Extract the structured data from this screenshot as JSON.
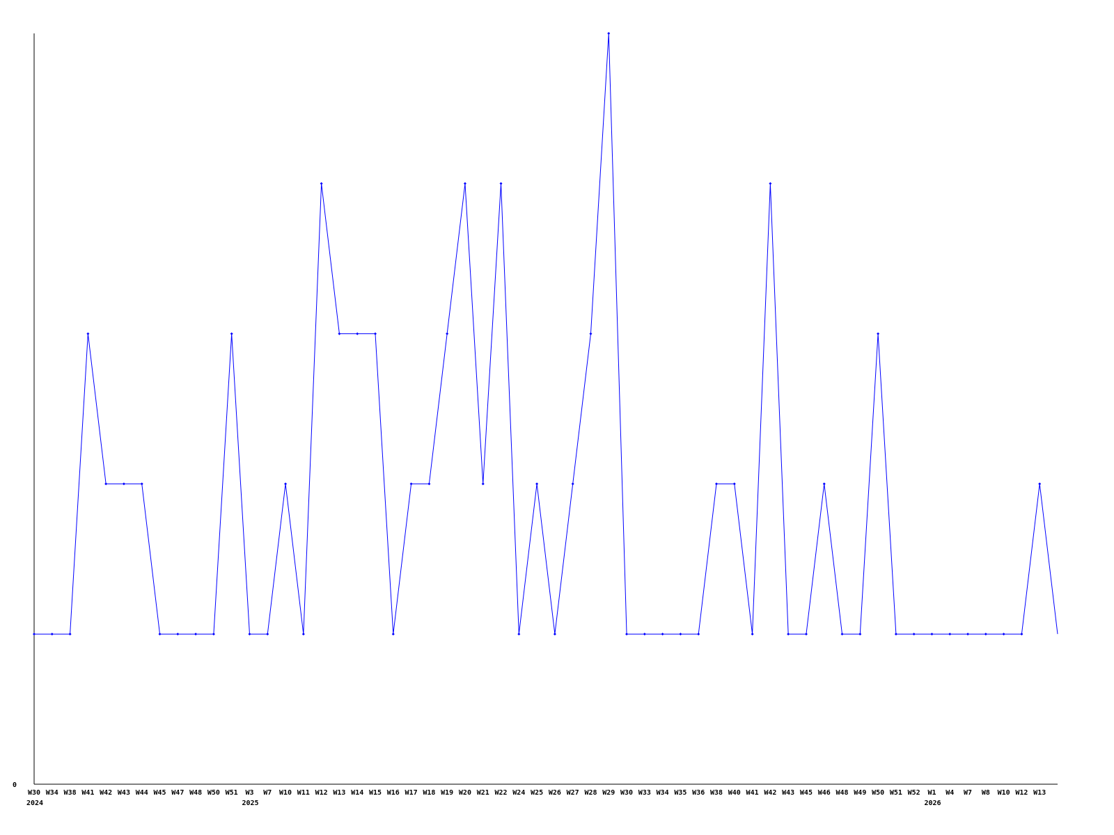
{
  "chart_data": {
    "type": "line",
    "title": "",
    "xlabel": "",
    "ylabel": "",
    "y_tick_labels": [
      "0"
    ],
    "ylim": [
      0,
      5
    ],
    "grid": false,
    "line_color": "#0000ff",
    "categories": [
      "W30",
      "W34",
      "W38",
      "W41",
      "W42",
      "W43",
      "W44",
      "W45",
      "W47",
      "W48",
      "W50",
      "W51",
      "W3",
      "W7",
      "W10",
      "W11",
      "W12",
      "W13",
      "W14",
      "W15",
      "W16",
      "W17",
      "W18",
      "W19",
      "W20",
      "W21",
      "W22",
      "W24",
      "W25",
      "W26",
      "W27",
      "W28",
      "W29",
      "W30",
      "W33",
      "W34",
      "W35",
      "W36",
      "W38",
      "W40",
      "W41",
      "W42",
      "W43",
      "W45",
      "W46",
      "W48",
      "W49",
      "W50",
      "W51",
      "W52",
      "W1",
      "W4",
      "W7",
      "W8",
      "W10",
      "W12",
      "W13",
      ""
    ],
    "year_labels": [
      {
        "index": 0,
        "label": "2024"
      },
      {
        "index": 12,
        "label": "2025"
      },
      {
        "index": 50,
        "label": "2026"
      }
    ],
    "values": [
      1,
      1,
      1,
      3,
      2,
      2,
      2,
      1,
      1,
      1,
      1,
      3,
      1,
      1,
      2,
      1,
      4,
      3,
      3,
      3,
      1,
      2,
      2,
      3,
      4,
      2,
      4,
      1,
      2,
      1,
      2,
      3,
      5,
      1,
      1,
      1,
      1,
      1,
      2,
      2,
      1,
      4,
      1,
      1,
      2,
      1,
      1,
      3,
      1,
      1,
      1,
      1,
      1,
      1,
      1,
      1,
      2,
      1
    ]
  }
}
